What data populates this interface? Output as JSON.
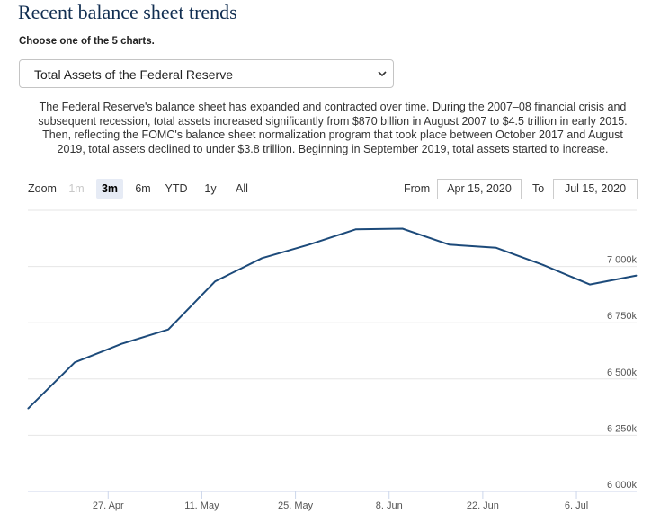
{
  "page": {
    "title": "Recent balance sheet trends",
    "subtitle": "Choose one of the 5 charts.",
    "select": {
      "value": "Total Assets of the Federal Reserve"
    },
    "description": "The Federal Reserve's balance sheet has expanded and contracted over time. During the 2007–08 financial crisis and subsequent recession, total assets increased significantly from $870 billion in August 2007 to $4.5 trillion in early 2015. Then, reflecting the FOMC's balance sheet normalization program that took place between October 2017 and August 2019, total assets declined to under $3.8 trillion. Beginning in September 2019, total assets started to increase."
  },
  "range_selector": {
    "zoom_label": "Zoom",
    "buttons": [
      {
        "label": "1m",
        "state": "disabled"
      },
      {
        "label": "3m",
        "state": "active"
      },
      {
        "label": "6m",
        "state": "normal"
      },
      {
        "label": "YTD",
        "state": "normal"
      },
      {
        "label": "1y",
        "state": "normal"
      },
      {
        "label": "All",
        "state": "normal"
      }
    ],
    "from_label": "From",
    "from_value": "Apr 15, 2020",
    "to_label": "To",
    "to_value": "Jul 15, 2020"
  },
  "chart_data": {
    "type": "line",
    "x_range": [
      "2020-04-15",
      "2020-07-15"
    ],
    "ylim": [
      6000000,
      7250000
    ],
    "y_ticks": [
      {
        "value": 6000000,
        "label": "6 000k"
      },
      {
        "value": 6250000,
        "label": "6 250k"
      },
      {
        "value": 6500000,
        "label": "6 500k"
      },
      {
        "value": 6750000,
        "label": "6 750k"
      },
      {
        "value": 7000000,
        "label": "7 000k"
      }
    ],
    "x_ticks": [
      {
        "date": "2020-04-27",
        "label": "27. Apr"
      },
      {
        "date": "2020-05-11",
        "label": "11. May"
      },
      {
        "date": "2020-05-25",
        "label": "25. May"
      },
      {
        "date": "2020-06-08",
        "label": "8. Jun"
      },
      {
        "date": "2020-06-22",
        "label": "22. Jun"
      },
      {
        "date": "2020-07-06",
        "label": "6. Jul"
      }
    ],
    "grid": true,
    "color": "#1c4a7a",
    "series": [
      {
        "points": [
          {
            "x": "2020-04-15",
            "y": 6368000
          },
          {
            "x": "2020-04-22",
            "y": 6574000
          },
          {
            "x": "2020-04-29",
            "y": 6656000
          },
          {
            "x": "2020-05-06",
            "y": 6720000
          },
          {
            "x": "2020-05-13",
            "y": 6934000
          },
          {
            "x": "2020-05-20",
            "y": 7037000
          },
          {
            "x": "2020-05-27",
            "y": 7097000
          },
          {
            "x": "2020-06-03",
            "y": 7165000
          },
          {
            "x": "2020-06-10",
            "y": 7168000
          },
          {
            "x": "2020-06-17",
            "y": 7097000
          },
          {
            "x": "2020-06-24",
            "y": 7083000
          },
          {
            "x": "2020-07-01",
            "y": 7007000
          },
          {
            "x": "2020-07-08",
            "y": 6920000
          },
          {
            "x": "2020-07-15",
            "y": 6960000
          }
        ]
      }
    ]
  }
}
